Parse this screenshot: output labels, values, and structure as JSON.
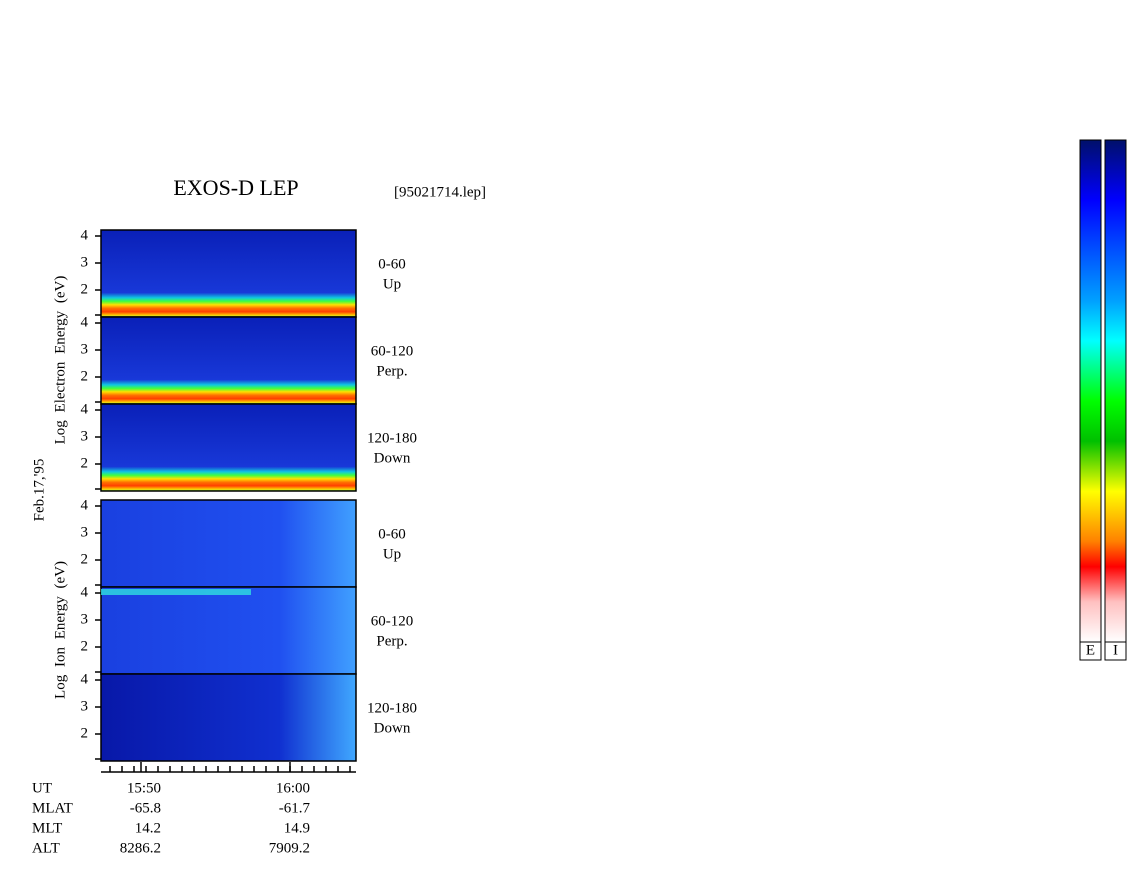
{
  "title": "EXOS-D LEP",
  "file": "[95021714.lep]",
  "date": "Feb.17,'95",
  "electron": {
    "axis_label": "Log  Electron  Energy (eV)",
    "panels": [
      {
        "ticks": [
          "4",
          "3",
          "2"
        ],
        "angle": "0-60",
        "direction": "Up"
      },
      {
        "ticks": [
          "4",
          "3",
          "2"
        ],
        "angle": "60-120",
        "direction": "Perp."
      },
      {
        "ticks": [
          "4",
          "3",
          "2"
        ],
        "angle": "120-180",
        "direction": "Down"
      }
    ]
  },
  "ion": {
    "axis_label": "Log  Ion  Energy (eV)",
    "panels": [
      {
        "ticks": [
          "4",
          "3",
          "2"
        ],
        "angle": "0-60",
        "direction": "Up"
      },
      {
        "ticks": [
          "4",
          "3",
          "2"
        ],
        "angle": "60-120",
        "direction": "Perp."
      },
      {
        "ticks": [
          "4",
          "3",
          "2"
        ],
        "angle": "120-180",
        "direction": "Down"
      }
    ]
  },
  "time_axis": {
    "rows": [
      [
        "UT",
        "15:50",
        "16:00"
      ],
      [
        "MLAT",
        "-65.8",
        "-61.7"
      ],
      [
        "MLT",
        "14.2",
        "14.9"
      ],
      [
        "ALT",
        "8286.2",
        "7909.2"
      ]
    ]
  },
  "colorbar_labels": [
    "E",
    "I"
  ]
}
